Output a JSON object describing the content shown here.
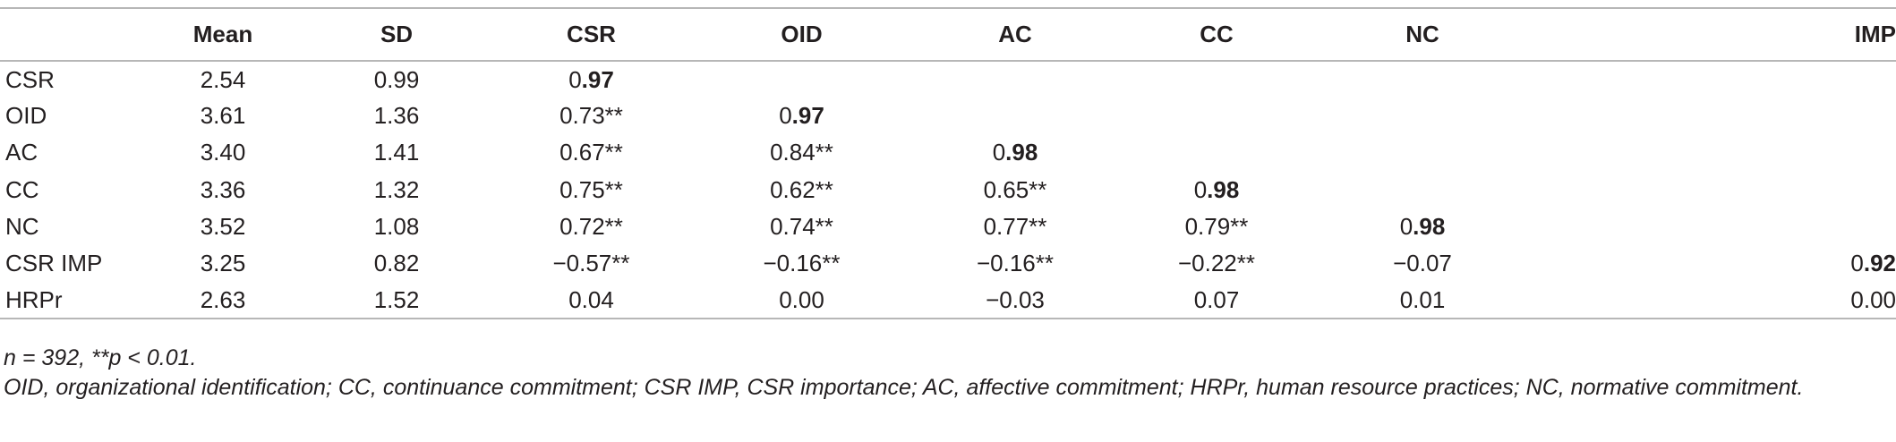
{
  "table": {
    "columns": [
      "",
      "Mean",
      "SD",
      "CSR",
      "OID",
      "AC",
      "CC",
      "NC",
      "IMP"
    ],
    "rows": [
      {
        "label": "CSR",
        "mean": "2.54",
        "sd": "0.99",
        "cells": [
          "0.97",
          "",
          "",
          "",
          "",
          ""
        ]
      },
      {
        "label": "OID",
        "mean": "3.61",
        "sd": "1.36",
        "cells": [
          "0.73**",
          "0.97",
          "",
          "",
          "",
          ""
        ]
      },
      {
        "label": "AC",
        "mean": "3.40",
        "sd": "1.41",
        "cells": [
          "0.67**",
          "0.84**",
          "0.98",
          "",
          "",
          ""
        ]
      },
      {
        "label": "CC",
        "mean": "3.36",
        "sd": "1.32",
        "cells": [
          "0.75**",
          "0.62**",
          "0.65**",
          "0.98",
          "",
          ""
        ]
      },
      {
        "label": "NC",
        "mean": "3.52",
        "sd": "1.08",
        "cells": [
          "0.72**",
          "0.74**",
          "0.77**",
          "0.79**",
          "0.98",
          ""
        ]
      },
      {
        "label": "CSR IMP",
        "mean": "3.25",
        "sd": "0.82",
        "cells": [
          "−0.57**",
          "−0.16**",
          "−0.16**",
          "−0.22**",
          "−0.07",
          "0.92"
        ]
      },
      {
        "label": "HRPr",
        "mean": "2.63",
        "sd": "1.52",
        "cells": [
          "0.04",
          "0.00",
          "−0.03",
          "0.07",
          "0.01",
          "0.00"
        ]
      }
    ],
    "diagonal_lead": "0",
    "diagonal": [
      ".97",
      ".97",
      ".98",
      ".98",
      ".98",
      ".92"
    ]
  },
  "notes": {
    "line1": "n = 392, **p < 0.01.",
    "line2": "OID, organizational identification; CC, continuance commitment; CSR IMP, CSR importance; AC, affective commitment; HRPr, human resource practices; NC, normative commitment."
  },
  "colors": {
    "text": "#231f20",
    "rule": "#b7b7b7",
    "background": "#ffffff"
  }
}
